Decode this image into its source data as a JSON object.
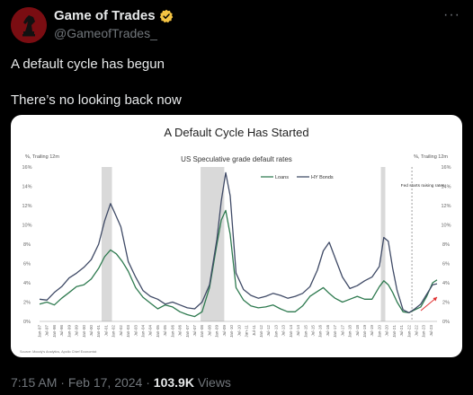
{
  "tweet": {
    "author_name": "Game of Trades",
    "handle": "@GameofTrades_",
    "more_label": "···",
    "text_line1": "A default cycle has begun",
    "text_line2": "There’s no looking back now",
    "time": "7:15 AM",
    "date": "Feb 17, 2024",
    "views_count": "103.9K",
    "views_label": "Views",
    "separator": "·"
  },
  "colors": {
    "accent": "#1d9bf0",
    "verified": "#f4c343",
    "loans": "#2e7a4f",
    "hy_bonds": "#3f4a66",
    "recession": "#d9d9d9",
    "arrow": "#e03030"
  },
  "chart_data": {
    "type": "line",
    "title": "A Default Cycle Has Started",
    "subtitle": "US Speculative grade default rates",
    "left_axis_label": "%, Trailing 12m",
    "right_axis_label": "%, Trailing 12m",
    "annotation": "Fed starts raising rates",
    "source": "Source: Moody's Analytics, Apollo Chief Economist",
    "ylim": [
      0,
      16
    ],
    "yticks": [
      "0%",
      "2%",
      "4%",
      "6%",
      "8%",
      "10%",
      "12%",
      "14%",
      "16%"
    ],
    "x_range": [
      1997.0,
      2023.9
    ],
    "xticks": [
      "Jan-97",
      "Jul-97",
      "Jan-98",
      "Jul-98",
      "Jan-99",
      "Jul-99",
      "Jan-00",
      "Jul-00",
      "Jan-01",
      "Jul-01",
      "Jan-02",
      "Jul-02",
      "Jan-03",
      "Jul-03",
      "Jan-04",
      "Jul-04",
      "Jan-05",
      "Jul-05",
      "Jan-06",
      "Jul-06",
      "Jan-07",
      "Jul-07",
      "Jan-08",
      "Jul-08",
      "Jan-09",
      "Jul-09",
      "Jan-10",
      "Jul-10",
      "Jan-11",
      "Jul-11",
      "Jan-12",
      "Jul-12",
      "Jan-13",
      "Jul-13",
      "Jan-14",
      "Jul-14",
      "Jan-15",
      "Jul-15",
      "Jan-16",
      "Jul-16",
      "Jan-17",
      "Jul-17",
      "Jan-18",
      "Jul-18",
      "Jan-19",
      "Jul-19",
      "Jan-20",
      "Jul-20",
      "Jan-21",
      "Jul-21",
      "Jan-22",
      "Jul-22",
      "Jan-23",
      "Jul-23"
    ],
    "recessions": [
      [
        2001.2,
        2001.9
      ],
      [
        2007.9,
        2009.5
      ],
      [
        2020.1,
        2020.4
      ]
    ],
    "fed_hike_x": 2022.2,
    "series": [
      {
        "name": "Loans",
        "x": [
          1997.0,
          1997.5,
          1998.0,
          1998.5,
          1999.0,
          1999.5,
          2000.0,
          2000.5,
          2001.0,
          2001.4,
          2001.8,
          2002.2,
          2002.6,
          2003.0,
          2003.5,
          2004.0,
          2004.5,
          2005.0,
          2005.5,
          2006.0,
          2006.5,
          2007.0,
          2007.5,
          2008.0,
          2008.5,
          2009.0,
          2009.3,
          2009.6,
          2009.9,
          2010.3,
          2010.8,
          2011.3,
          2011.8,
          2012.3,
          2012.8,
          2013.3,
          2013.8,
          2014.3,
          2014.8,
          2015.3,
          2015.8,
          2016.2,
          2016.6,
          2017.0,
          2017.5,
          2018.0,
          2018.5,
          2019.0,
          2019.5,
          2020.0,
          2020.3,
          2020.6,
          2020.9,
          2021.2,
          2021.6,
          2022.0,
          2022.4,
          2022.8,
          2023.2,
          2023.6,
          2023.9
        ],
        "values": [
          1.8,
          2.0,
          1.7,
          2.4,
          3.0,
          3.6,
          3.8,
          4.4,
          5.5,
          6.7,
          7.4,
          7.0,
          6.2,
          5.2,
          3.5,
          2.5,
          1.9,
          1.3,
          1.7,
          1.5,
          1.0,
          0.7,
          0.5,
          1.0,
          3.5,
          8.0,
          10.5,
          11.5,
          9.0,
          3.5,
          2.2,
          1.6,
          1.4,
          1.5,
          1.7,
          1.3,
          1.0,
          1.0,
          1.6,
          2.6,
          3.1,
          3.5,
          2.9,
          2.4,
          2.0,
          2.3,
          2.6,
          2.3,
          2.3,
          3.6,
          4.2,
          3.8,
          3.0,
          2.0,
          1.0,
          0.9,
          1.2,
          1.5,
          2.6,
          4.0,
          4.3
        ]
      },
      {
        "name": "HY Bonds",
        "x": [
          1997.0,
          1997.5,
          1998.0,
          1998.5,
          1999.0,
          1999.5,
          2000.0,
          2000.5,
          2001.0,
          2001.4,
          2001.8,
          2002.1,
          2002.5,
          2003.0,
          2003.5,
          2004.0,
          2004.5,
          2005.0,
          2005.5,
          2006.0,
          2006.5,
          2007.0,
          2007.5,
          2008.0,
          2008.5,
          2009.0,
          2009.3,
          2009.6,
          2009.9,
          2010.3,
          2010.8,
          2011.3,
          2011.8,
          2012.3,
          2012.8,
          2013.3,
          2013.8,
          2014.3,
          2014.8,
          2015.3,
          2015.8,
          2016.2,
          2016.6,
          2017.0,
          2017.5,
          2018.0,
          2018.5,
          2019.0,
          2019.5,
          2020.0,
          2020.3,
          2020.6,
          2020.9,
          2021.2,
          2021.6,
          2022.0,
          2022.4,
          2022.8,
          2023.2,
          2023.6,
          2023.9
        ],
        "values": [
          2.3,
          2.2,
          3.0,
          3.6,
          4.5,
          5.0,
          5.6,
          6.4,
          8.0,
          10.4,
          12.2,
          11.2,
          9.8,
          6.2,
          4.6,
          3.2,
          2.6,
          2.3,
          1.8,
          2.0,
          1.7,
          1.4,
          1.3,
          2.0,
          3.8,
          8.5,
          12.5,
          15.4,
          13.0,
          5.0,
          3.3,
          2.7,
          2.4,
          2.6,
          2.9,
          2.7,
          2.4,
          2.6,
          2.9,
          3.6,
          5.3,
          7.3,
          8.2,
          6.6,
          4.6,
          3.4,
          3.7,
          4.2,
          4.6,
          5.7,
          8.7,
          8.3,
          5.5,
          3.2,
          1.2,
          0.9,
          1.3,
          1.8,
          2.8,
          3.8,
          3.9
        ]
      }
    ]
  }
}
